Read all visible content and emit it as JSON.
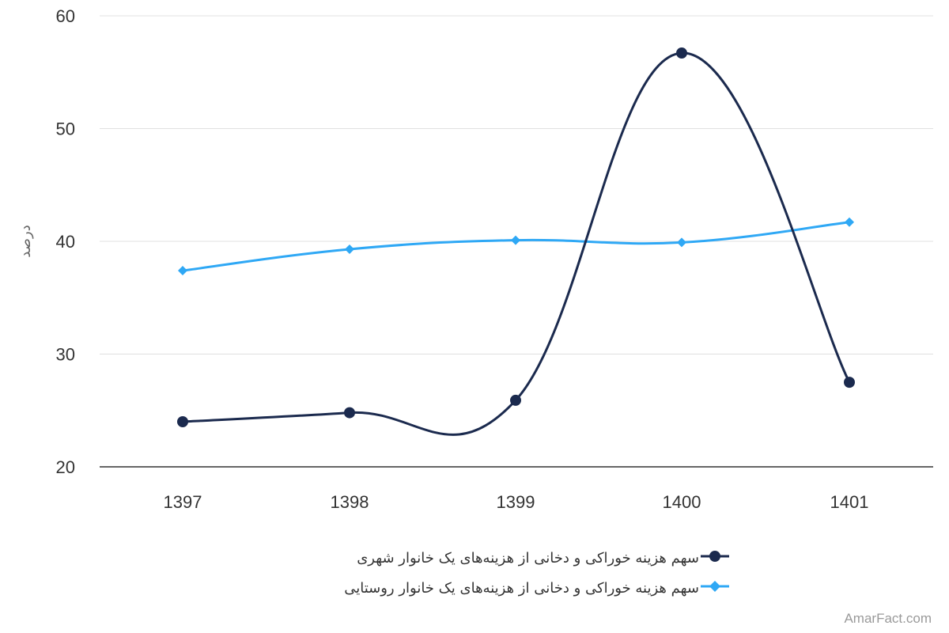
{
  "chart_data": {
    "type": "line",
    "categories": [
      "1397",
      "1398",
      "1399",
      "1400",
      "1401"
    ],
    "ylabel": "درصد",
    "ylim": [
      20,
      60
    ],
    "yticks": [
      20,
      30,
      40,
      50,
      60
    ],
    "grid": true,
    "legend_position": "bottom",
    "series": [
      {
        "name": "سهم هزینه خوراکی و دخانی از هزینه‌های یک خانوار شهری",
        "values": [
          24.0,
          24.8,
          25.9,
          56.7,
          27.5
        ],
        "color": "#1b2a4e",
        "marker": "circle"
      },
      {
        "name": "سهم هزینه خوراکی و دخانی از هزینه‌های یک خانوار روستایی",
        "values": [
          37.4,
          39.3,
          40.1,
          39.9,
          41.7
        ],
        "color": "#2fa8f5",
        "marker": "diamond"
      }
    ]
  },
  "watermark": "AmarFact.com"
}
